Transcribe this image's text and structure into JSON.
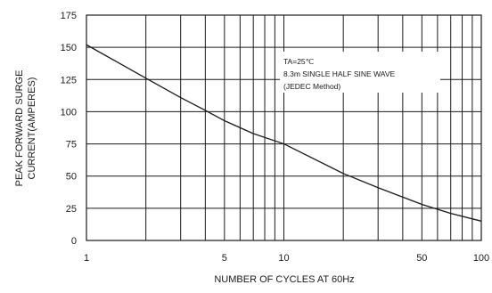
{
  "chart_data": {
    "type": "line",
    "xscale": "log",
    "xlim": [
      1,
      100
    ],
    "ylim": [
      0,
      175
    ],
    "x_ticks": [
      1,
      5,
      10,
      50,
      100
    ],
    "x_tick_labels": [
      "1",
      "5",
      "10",
      "50",
      "100"
    ],
    "y_ticks": [
      0,
      25,
      50,
      75,
      100,
      125,
      150,
      175
    ],
    "y_tick_labels": [
      "0",
      "25",
      "50",
      "75",
      "100",
      "125",
      "150",
      "175"
    ],
    "xlabel": "NUMBER OF CYCLES AT 60Hz",
    "ylabel_lines": [
      "PEAK FORWARD SURGE",
      "CURRENT(AMPERES)"
    ],
    "grid": true,
    "series": [
      {
        "x": [
          1,
          2,
          3,
          4,
          5,
          7,
          10,
          20,
          30,
          50,
          70,
          100
        ],
        "values": [
          152,
          126,
          111,
          101,
          93,
          83,
          75,
          52,
          41,
          28,
          21,
          15
        ]
      }
    ],
    "annotation": {
      "position": "top-right",
      "lines": [
        "TA=25℃",
        "8.3m SINGLE HALF SINE WAVE",
        "(JEDEC Method)"
      ]
    },
    "line_color": "#1a1a1a"
  }
}
